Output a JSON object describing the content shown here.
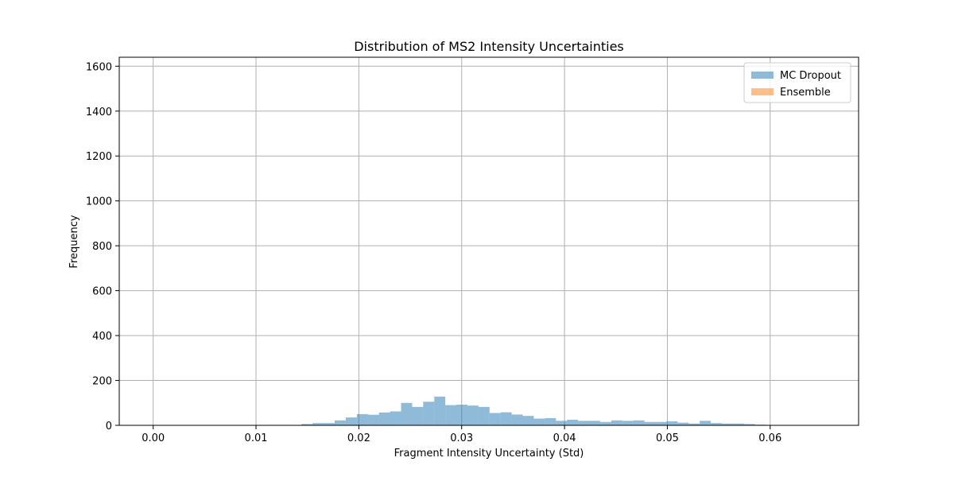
{
  "chart_data": {
    "type": "bar",
    "title": "Distribution of MS2 Intensity Uncertainties",
    "xlabel": "Fragment Intensity Uncertainty (Std)",
    "ylabel": "Frequency",
    "xlim": [
      -0.0033,
      0.0686
    ],
    "ylim": [
      0,
      1640
    ],
    "xticks": [
      0.0,
      0.01,
      0.02,
      0.03,
      0.04,
      0.05,
      0.06
    ],
    "xtick_labels": [
      "0.00",
      "0.01",
      "0.02",
      "0.03",
      "0.04",
      "0.05",
      "0.06"
    ],
    "yticks": [
      0,
      200,
      400,
      600,
      800,
      1000,
      1200,
      1400,
      1600
    ],
    "ytick_labels": [
      "0",
      "200",
      "400",
      "600",
      "800",
      "1000",
      "1200",
      "1400",
      "1600"
    ],
    "grid": true,
    "legend_position": "top-right",
    "series": [
      {
        "name": "MC Dropout",
        "color": "#1f77b4",
        "opacity": 0.5,
        "bin_start": 0.0112,
        "bin_width": 0.0010756,
        "counts": [
          2,
          2,
          0,
          6,
          10,
          10,
          22,
          35,
          50,
          47,
          57,
          62,
          100,
          82,
          105,
          128,
          90,
          92,
          88,
          82,
          55,
          58,
          48,
          42,
          30,
          32,
          20,
          25,
          20,
          20,
          15,
          22,
          20,
          22,
          15,
          15,
          18,
          12,
          8,
          20,
          10,
          8,
          8,
          6,
          3
        ]
      },
      {
        "name": "Ensemble",
        "color": "#ff7f0e",
        "opacity": 0.5,
        "bin_start": 0.0,
        "bin_width": 0.0010756,
        "counts": [
          0,
          0,
          0,
          0,
          0,
          0,
          0,
          0,
          0,
          0,
          0,
          0,
          0,
          0,
          0,
          0,
          0,
          0,
          0,
          0,
          0,
          0,
          0,
          0,
          0,
          0,
          0,
          0,
          0,
          0,
          0,
          0,
          0,
          0,
          0,
          0,
          0,
          0,
          0,
          0,
          0,
          0,
          0,
          0,
          0,
          0,
          0,
          0,
          0,
          0,
          0,
          0,
          0,
          0,
          0,
          0,
          0,
          0,
          0,
          0,
          0
        ]
      }
    ]
  }
}
